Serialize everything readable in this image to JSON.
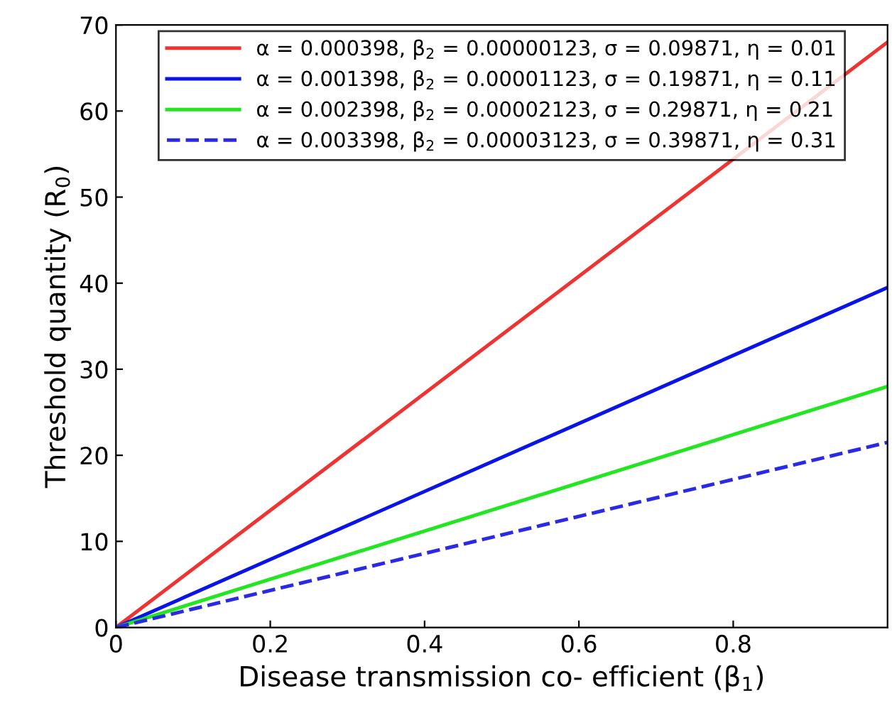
{
  "chart_data": {
    "type": "line",
    "xlabel": "Disease transmission co- efficient (β$_{1}$)",
    "ylabel": "Threshold quantity (R$_{0}$)",
    "x": [
      0,
      1
    ],
    "xlim": [
      0,
      1
    ],
    "ylim": [
      0,
      70
    ],
    "xticks": [
      0,
      0.2,
      0.4,
      0.6,
      0.8
    ],
    "yticks": [
      0,
      10,
      20,
      30,
      40,
      50,
      60,
      70
    ],
    "grid": false,
    "legend": "top",
    "marker": "none",
    "series": [
      {
        "name": "α = 0.000398, β$_{2}$ = 0.00000123, σ = 0.09871, η = 0.01",
        "color": "#ee3333",
        "values": [
          0,
          68
        ],
        "line_style": "solid"
      },
      {
        "name": "α = 0.001398, β$_{2}$ = 0.00001123, σ = 0.19871, η = 0.11",
        "color": "#0a14e6",
        "values": [
          0,
          39.5
        ],
        "line_style": "solid"
      },
      {
        "name": "α = 0.002398, β$_{2}$ = 0.00002123, σ = 0.29871, η = 0.21",
        "color": "#22e622",
        "values": [
          0,
          28
        ],
        "line_style": "solid"
      },
      {
        "name": "α = 0.003398, β$_{2}$ = 0.00003123, σ = 0.39871, η = 0.31",
        "color": "#2a2ae6",
        "values": [
          0,
          21.5
        ],
        "line_style": "dashed"
      }
    ]
  }
}
